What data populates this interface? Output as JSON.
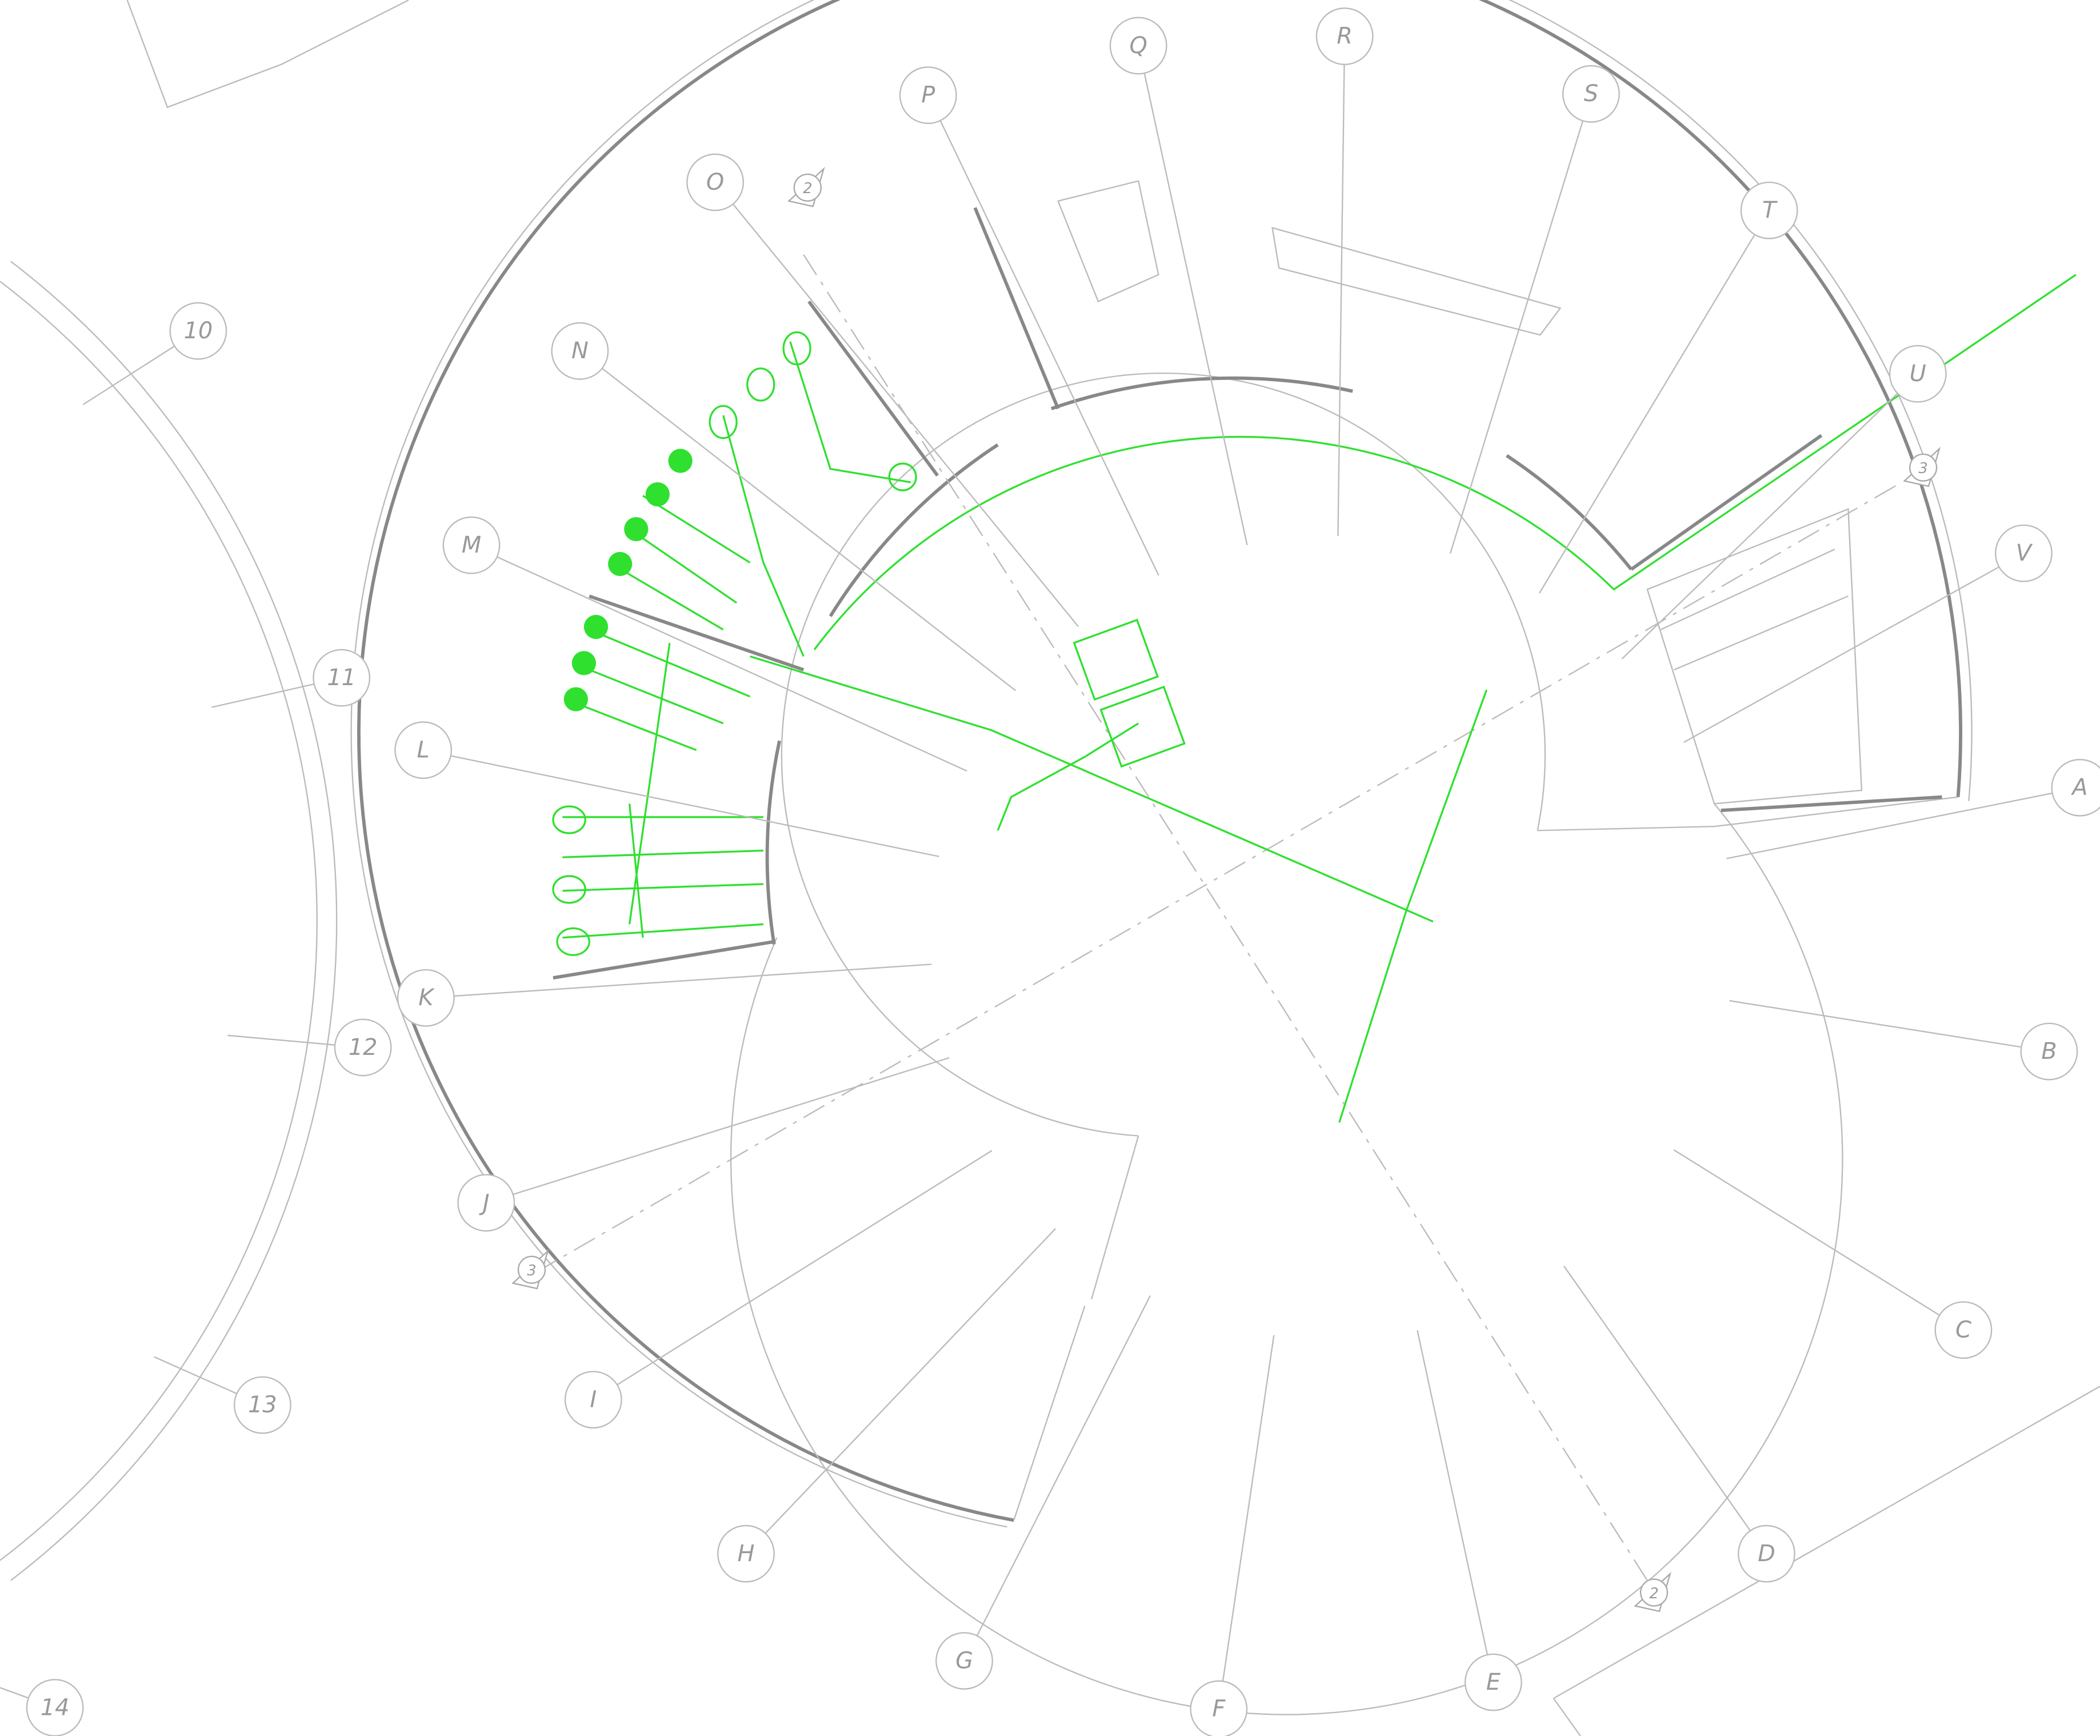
{
  "grid_bubbles": [
    "A",
    "B",
    "C",
    "D",
    "E",
    "F",
    "G",
    "H",
    "I",
    "J",
    "K",
    "L",
    "M",
    "N",
    "O",
    "P",
    "Q",
    "R",
    "S",
    "T",
    "U",
    "V"
  ],
  "number_bubbles": [
    "10",
    "11",
    "12",
    "13",
    "14"
  ],
  "section_markers": [
    "2",
    "2",
    "3",
    "3"
  ]
}
